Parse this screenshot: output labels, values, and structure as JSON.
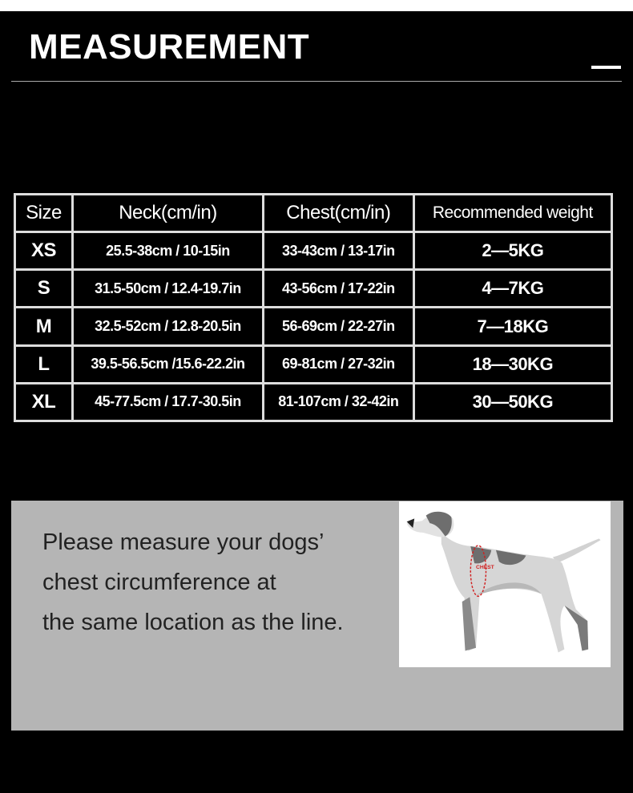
{
  "title": "MEASUREMENT",
  "table": {
    "headers": [
      "Size",
      "Neck(cm/in)",
      "Chest(cm/in)",
      "Recommended weight"
    ],
    "rows": [
      [
        "XS",
        "25.5-38cm / 10-15in",
        "33-43cm / 13-17in",
        "2—5KG"
      ],
      [
        "S",
        "31.5-50cm / 12.4-19.7in",
        "43-56cm / 17-22in",
        "4—7KG"
      ],
      [
        "M",
        "32.5-52cm / 12.8-20.5in",
        "56-69cm / 22-27in",
        "7—18KG"
      ],
      [
        "L",
        "39.5-56.5cm /15.6-22.2in",
        "69-81cm / 27-32in",
        "18—30KG"
      ],
      [
        "XL",
        "45-77.5cm / 17.7-30.5in",
        "81-107cm / 32-42in",
        "30—50KG"
      ]
    ]
  },
  "instruction": [
    "Please measure your dogs’",
    "chest circumference at",
    "the same location as the line."
  ],
  "diagram": {
    "chest_label": "CHEST",
    "marker_color": "#d02020"
  }
}
